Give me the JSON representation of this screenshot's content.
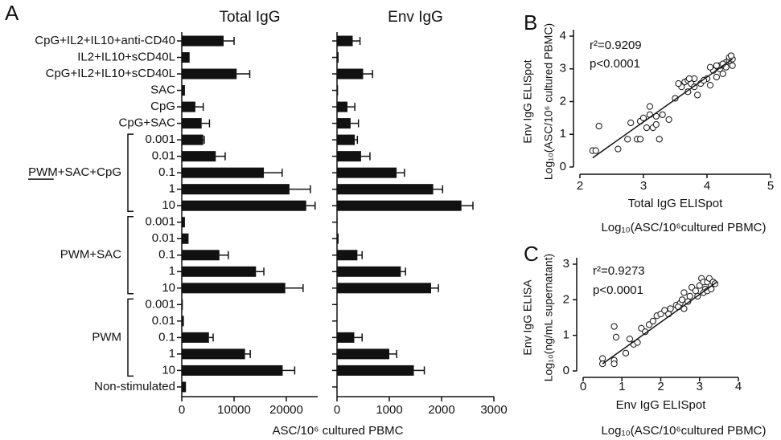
{
  "chart_data": [
    {
      "type": "bar",
      "orientation": "horizontal",
      "panel": "A",
      "title": "Total IgG",
      "categories": [
        "CpG+IL2+IL10+anti-CD40",
        "IL2+IL10+sCD40L",
        "CpG+IL2+IL10+sCD40L",
        "SAC",
        "CpG",
        "CpG+SAC",
        "0.001",
        "0.01",
        "0.1",
        "1",
        "10",
        "0.001",
        "0.01",
        "0.1",
        "1",
        "10",
        "0.001",
        "0.01",
        "0.1",
        "1",
        "10",
        "Non-stimulated"
      ],
      "groups": [
        "PWM+SAC+CpG",
        "PWM+SAC",
        "PWM"
      ],
      "values": [
        8000,
        1500,
        10500,
        600,
        2600,
        3800,
        4100,
        6500,
        15700,
        20600,
        23800,
        600,
        1300,
        7200,
        14200,
        19800,
        200,
        400,
        5200,
        12100,
        19300,
        800
      ],
      "errors": [
        2000,
        0,
        2500,
        0,
        1500,
        1500,
        200,
        1800,
        3500,
        4000,
        1700,
        0,
        0,
        1700,
        1500,
        3400,
        0,
        0,
        800,
        1000,
        2300,
        0
      ],
      "color": "#111111",
      "xlim": [
        0,
        26000
      ],
      "xticks": [
        0,
        10000,
        20000
      ],
      "xlabel": "ASC/10⁶ cultured PBMC"
    },
    {
      "type": "bar",
      "orientation": "horizontal",
      "title": "Env IgG",
      "values": [
        300,
        30,
        500,
        20,
        200,
        260,
        340,
        460,
        1140,
        1840,
        2380,
        10,
        30,
        390,
        1220,
        1800,
        0,
        0,
        330,
        1000,
        1470,
        0
      ],
      "errors": [
        140,
        0,
        180,
        0,
        140,
        150,
        50,
        170,
        150,
        180,
        220,
        0,
        0,
        90,
        90,
        140,
        0,
        0,
        150,
        140,
        200,
        0
      ],
      "color": "#111111",
      "xlim": [
        0,
        3000
      ],
      "xticks": [
        0,
        1000,
        2000,
        3000
      ]
    },
    {
      "type": "scatter",
      "panel": "B",
      "x": [
        2.2,
        2.25,
        2.3,
        2.6,
        2.75,
        2.8,
        2.9,
        2.95,
        2.95,
        3.0,
        3.05,
        3.1,
        3.1,
        3.15,
        3.2,
        3.2,
        3.25,
        3.3,
        3.4,
        3.5,
        3.6,
        3.65,
        3.7,
        3.7,
        3.75,
        3.8,
        3.8,
        3.85,
        3.9,
        4.0,
        4.05,
        4.1,
        4.15,
        4.2,
        4.2,
        4.25,
        4.3,
        4.3,
        4.35,
        4.35,
        4.4,
        4.4,
        4.25,
        4.05,
        3.6,
        3.55,
        3.95,
        4.15,
        4.38,
        3.72
      ],
      "y": [
        0.5,
        0.5,
        1.25,
        0.55,
        0.85,
        1.35,
        0.85,
        0.85,
        1.4,
        1.5,
        1.2,
        1.85,
        1.6,
        1.2,
        1.55,
        1.3,
        0.85,
        1.6,
        1.45,
        2.1,
        2.5,
        2.6,
        2.65,
        2.3,
        2.55,
        2.45,
        2.7,
        2.2,
        2.55,
        2.7,
        2.5,
        2.95,
        2.75,
        3.0,
        3.1,
        2.85,
        3.2,
        3.05,
        3.25,
        3.35,
        3.3,
        3.1,
        3.15,
        3.05,
        2.45,
        2.55,
        2.65,
        3.1,
        3.4,
        2.7
      ],
      "fit": {
        "x": [
          2.2,
          4.4
        ],
        "y": [
          0.28,
          3.3
        ]
      },
      "xlim": [
        2,
        5
      ],
      "ylim": [
        0,
        4
      ],
      "xticks": [
        2,
        3,
        4,
        5
      ],
      "yticks": [
        0,
        1,
        2,
        3,
        4
      ],
      "xlabel": [
        "Total IgG ELISpot",
        "Log₁₀(ASC/10⁶cultured PBMC)"
      ],
      "ylabel": [
        "Env IgG ELISpot",
        "Log₁₀(ASC/10⁶ cultured PBMC)"
      ],
      "annotations": [
        "r²=0.9209",
        "p<0.0001"
      ]
    },
    {
      "type": "scatter",
      "panel": "C",
      "x": [
        0.5,
        0.5,
        0.8,
        0.8,
        0.8,
        0.85,
        1.1,
        1.2,
        1.3,
        1.4,
        1.5,
        1.6,
        1.7,
        1.8,
        1.9,
        2.0,
        2.1,
        2.2,
        2.25,
        2.4,
        2.5,
        2.55,
        2.6,
        2.6,
        2.7,
        2.75,
        2.8,
        2.9,
        3.0,
        3.05,
        3.1,
        3.15,
        3.2,
        3.25,
        3.3,
        3.35,
        3.4,
        3.1,
        2.95,
        3.2,
        3.3,
        2.45
      ],
      "y": [
        0.35,
        0.2,
        0.3,
        0.2,
        1.25,
        0.95,
        0.5,
        0.9,
        0.75,
        0.8,
        1.2,
        1.1,
        1.3,
        1.4,
        1.55,
        1.6,
        1.7,
        1.6,
        1.75,
        1.85,
        1.9,
        2.0,
        1.75,
        2.2,
        1.95,
        2.1,
        2.35,
        2.25,
        2.4,
        2.6,
        2.5,
        2.3,
        2.5,
        2.6,
        2.4,
        2.5,
        2.45,
        2.2,
        2.1,
        2.25,
        2.3,
        1.8
      ],
      "fit": {
        "x": [
          0.5,
          3.45
        ],
        "y": [
          0.2,
          2.5
        ]
      },
      "xlim": [
        0,
        4
      ],
      "ylim": [
        0,
        3
      ],
      "xticks": [
        0,
        1,
        2,
        3,
        4
      ],
      "yticks": [
        0,
        1,
        2,
        3
      ],
      "xlabel": [
        "Env IgG ELISpot",
        "Log₁₀(ASC/10⁶cultured PBMC)"
      ],
      "ylabel": [
        "Env IgG ELISA",
        "Log₁₀(ng/mL supernatant)"
      ],
      "annotations": [
        "r²=0.9273",
        "p<0.0001"
      ]
    }
  ]
}
